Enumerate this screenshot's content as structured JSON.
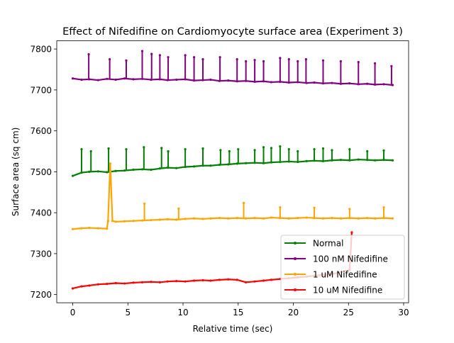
{
  "chart_data": {
    "type": "line",
    "title": "Effect of Nifedifine on Cardiomyocyte surface area (Experiment 3)",
    "xlabel": "Relative time (sec)",
    "ylabel": "Surface area (sq cm)",
    "xlim": [
      -1.45,
      30.45
    ],
    "ylim": [
      7180,
      7820
    ],
    "xticks": [
      0,
      5,
      10,
      15,
      20,
      25,
      30
    ],
    "yticks": [
      7200,
      7300,
      7400,
      7500,
      7600,
      7700,
      7800
    ],
    "grid": false,
    "legend_position": "lower-right",
    "series": [
      {
        "name": "Normal",
        "color": "#008000",
        "x": [
          0,
          0.8,
          1.5,
          2.3,
          3.1,
          3.9,
          4.7,
          5.5,
          6.3,
          7.1,
          7.9,
          8.6,
          9.4,
          10.2,
          11.0,
          11.8,
          12.5,
          13.3,
          14.1,
          14.9,
          15.7,
          16.5,
          17.3,
          18.0,
          18.8,
          19.6,
          20.4,
          21.2,
          21.9,
          22.7,
          23.5,
          24.3,
          25.1,
          25.9,
          26.7,
          27.4,
          28.2,
          29.0
        ],
        "y": [
          7490,
          7498,
          7500,
          7501,
          7499,
          7502,
          7503,
          7505,
          7506,
          7505,
          7508,
          7510,
          7509,
          7512,
          7513,
          7515,
          7515,
          7517,
          7518,
          7520,
          7521,
          7522,
          7521,
          7523,
          7524,
          7525,
          7524,
          7526,
          7527,
          7526,
          7528,
          7529,
          7528,
          7530,
          7529,
          7528,
          7529,
          7528
        ],
        "spike_x": [
          0.8,
          1.65,
          3.25,
          4.85,
          6.45,
          8.05,
          8.65,
          10.2,
          11.8,
          13.4,
          14.2,
          15.0,
          16.5,
          17.3,
          18.0,
          18.8,
          19.6,
          20.4,
          21.9,
          22.7,
          23.5,
          25.1,
          26.7,
          28.2
        ],
        "spike_y": [
          7555,
          7550,
          7557,
          7555,
          7560,
          7558,
          7550,
          7555,
          7557,
          7553,
          7550,
          7555,
          7553,
          7560,
          7558,
          7562,
          7555,
          7550,
          7555,
          7557,
          7553,
          7555,
          7550,
          7552
        ]
      },
      {
        "name": "100 nM Nifedifine",
        "color": "#800080",
        "x": [
          0,
          0.8,
          1.5,
          2.3,
          3.1,
          3.9,
          4.7,
          5.5,
          6.3,
          7.1,
          7.9,
          8.6,
          9.4,
          10.2,
          11.0,
          11.8,
          12.5,
          13.3,
          14.1,
          14.9,
          15.7,
          16.5,
          17.3,
          18.0,
          18.8,
          19.6,
          20.4,
          21.2,
          21.9,
          22.7,
          23.5,
          24.3,
          25.1,
          25.9,
          26.7,
          27.4,
          28.2,
          29.0
        ],
        "y": [
          7728,
          7725,
          7726,
          7724,
          7727,
          7725,
          7728,
          7726,
          7727,
          7725,
          7726,
          7724,
          7725,
          7726,
          7723,
          7724,
          7725,
          7722,
          7723,
          7721,
          7722,
          7720,
          7721,
          7719,
          7720,
          7718,
          7719,
          7717,
          7718,
          7716,
          7717,
          7715,
          7716,
          7714,
          7715,
          7713,
          7714,
          7712
        ],
        "spike_x": [
          1.45,
          3.35,
          4.85,
          6.3,
          7.15,
          7.9,
          8.65,
          10.2,
          11.0,
          11.8,
          13.35,
          14.9,
          15.7,
          16.5,
          17.3,
          18.8,
          19.6,
          20.4,
          21.15,
          22.7,
          24.3,
          25.9,
          27.4,
          28.9
        ],
        "spike_y": [
          7787,
          7775,
          7772,
          7795,
          7788,
          7785,
          7780,
          7785,
          7780,
          7775,
          7780,
          7775,
          7770,
          7773,
          7770,
          7778,
          7775,
          7770,
          7775,
          7772,
          7770,
          7768,
          7765,
          7758
        ]
      },
      {
        "name": "1 uM Nifedifine",
        "color": "#ffa500",
        "x": [
          0,
          0.8,
          1.5,
          2.3,
          3.1,
          3.2,
          3.4,
          3.6,
          3.9,
          4.7,
          5.5,
          6.3,
          7.1,
          7.9,
          8.6,
          9.4,
          10.2,
          11.0,
          11.8,
          12.5,
          13.3,
          14.1,
          14.9,
          15.7,
          16.5,
          17.3,
          18.0,
          18.8,
          19.6,
          20.4,
          21.2,
          21.9,
          22.7,
          23.5,
          24.3,
          25.1,
          25.9,
          26.7,
          27.4,
          28.2,
          29.0
        ],
        "y": [
          7360,
          7362,
          7363,
          7362,
          7361,
          7380,
          7520,
          7380,
          7378,
          7379,
          7380,
          7381,
          7382,
          7383,
          7384,
          7383,
          7385,
          7386,
          7385,
          7386,
          7387,
          7386,
          7387,
          7386,
          7387,
          7386,
          7388,
          7387,
          7386,
          7387,
          7388,
          7387,
          7386,
          7387,
          7386,
          7387,
          7386,
          7387,
          7386,
          7387,
          7386
        ],
        "spike_x": [
          6.5,
          9.6,
          15.5,
          18.8,
          21.9,
          25.1,
          28.2
        ],
        "spike_y": [
          7422,
          7410,
          7424,
          7413,
          7412,
          7409,
          7413
        ]
      },
      {
        "name": "10 uM Nifedifine",
        "color": "#ff0000",
        "x": [
          0,
          0.8,
          1.5,
          2.3,
          3.1,
          3.9,
          4.7,
          5.5,
          6.3,
          7.1,
          7.9,
          8.6,
          9.4,
          10.2,
          11.0,
          11.8,
          12.5,
          13.3,
          14.1,
          14.9,
          15.7,
          16.5,
          17.3,
          18.0,
          18.8,
          19.6,
          20.4,
          21.2,
          21.9,
          22.7,
          23.5,
          24.3,
          25.1,
          25.3
        ],
        "y": [
          7215,
          7220,
          7222,
          7225,
          7226,
          7228,
          7227,
          7229,
          7230,
          7231,
          7230,
          7232,
          7233,
          7232,
          7234,
          7235,
          7234,
          7236,
          7237,
          7236,
          7230,
          7232,
          7234,
          7236,
          7238,
          7240,
          7242,
          7244,
          7246,
          7248,
          7250,
          7255,
          7260,
          7352
        ],
        "spike_x": [],
        "spike_y": []
      }
    ]
  }
}
